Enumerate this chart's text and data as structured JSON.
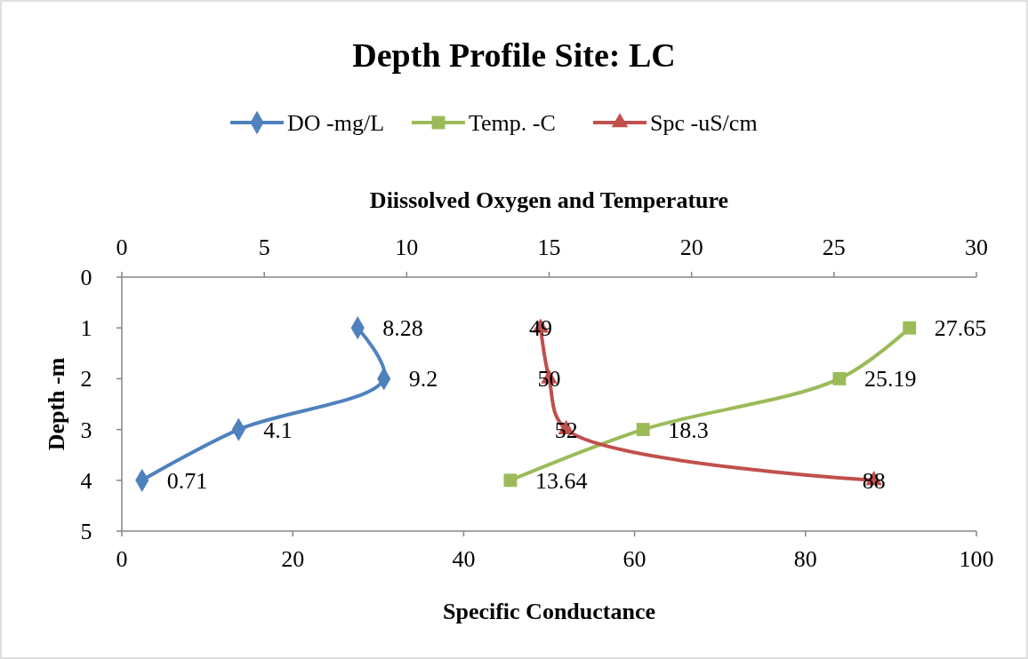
{
  "chart_data": {
    "type": "line",
    "orientation": "horizontal",
    "title": "Depth Profile Site: LC",
    "xlabel": "Specific Conductance",
    "x2label": "Diissolved Oxygen and Temperature",
    "ylabel": "Depth -m",
    "categories": [
      "0",
      "1",
      "2",
      "3",
      "4",
      "5"
    ],
    "xlim": [
      0,
      100
    ],
    "xticks": [
      0,
      20,
      40,
      60,
      80,
      100
    ],
    "x2lim": [
      0,
      30
    ],
    "x2ticks": [
      0,
      5,
      10,
      15,
      20,
      25,
      30
    ],
    "grid": false,
    "legend": "top",
    "series": [
      {
        "name": "DO -mg/L",
        "color": "#4f81bd",
        "marker": "diamond",
        "axis": "x2",
        "values": [
          null,
          8.28,
          9.2,
          4.1,
          0.71,
          null
        ],
        "data_labels": true
      },
      {
        "name": "Temp. -C",
        "color": "#9bbb59",
        "marker": "square",
        "axis": "x2",
        "values": [
          null,
          27.65,
          25.19,
          18.3,
          13.64,
          null
        ],
        "data_labels": true
      },
      {
        "name": "Spc -uS/cm",
        "color": "#c0504d",
        "marker": "triangle",
        "values": [
          null,
          49,
          50,
          52,
          88,
          null
        ],
        "data_labels": true
      }
    ]
  }
}
